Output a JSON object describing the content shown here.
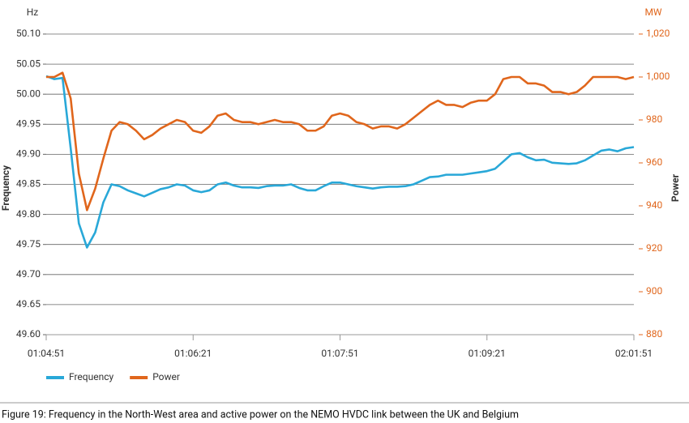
{
  "chart_data": {
    "type": "line",
    "y_unit": "Hz",
    "y2_unit": "MW",
    "ylabel": "Frequency",
    "y2label": "Power",
    "caption": "Figure 19: Frequency in the North-West area and active power on the NEMO HVDC link between the UK and Belgium",
    "categories": [
      "01:04:51",
      null,
      null,
      null,
      null,
      null,
      null,
      null,
      null,
      null,
      null,
      null,
      null,
      null,
      null,
      null,
      null,
      null,
      "01:06:21",
      null,
      null,
      null,
      null,
      null,
      null,
      null,
      null,
      null,
      null,
      null,
      null,
      null,
      null,
      null,
      null,
      null,
      "01:07:51",
      null,
      null,
      null,
      null,
      null,
      null,
      null,
      null,
      null,
      null,
      null,
      null,
      null,
      null,
      null,
      null,
      null,
      "01:09:21",
      null,
      null,
      null,
      null,
      null,
      null,
      null,
      null,
      null,
      null,
      null,
      null,
      null,
      null,
      null,
      null,
      null,
      "02:01:51"
    ],
    "series": [
      {
        "name": "Frequency",
        "color": "#29a8d8",
        "values": [
          50.03,
          50.025,
          50.027,
          49.91,
          49.785,
          49.745,
          49.77,
          49.82,
          49.85,
          49.847,
          49.84,
          49.835,
          49.83,
          49.836,
          49.842,
          49.845,
          49.85,
          49.848,
          49.84,
          49.837,
          49.84,
          49.85,
          49.853,
          49.848,
          49.845,
          49.845,
          49.844,
          49.847,
          49.848,
          49.848,
          49.85,
          49.844,
          49.84,
          49.84,
          49.847,
          49.853,
          49.853,
          49.85,
          49.847,
          49.845,
          49.843,
          49.845,
          49.846,
          49.846,
          49.847,
          49.85,
          49.856,
          49.862,
          49.863,
          49.866,
          49.866,
          49.866,
          49.868,
          49.87,
          49.872,
          49.876,
          49.888,
          49.9,
          49.902,
          49.895,
          49.89,
          49.891,
          49.886,
          49.885,
          49.884,
          49.885,
          49.89,
          49.898,
          49.906,
          49.908,
          49.905,
          49.91,
          49.912
        ]
      },
      {
        "name": "Power",
        "color": "#e0661c",
        "axis": "y2",
        "values": [
          1000,
          1000,
          1002,
          990,
          955,
          938,
          948,
          962,
          975,
          979,
          978,
          975,
          971,
          973,
          976,
          978,
          980,
          979,
          975,
          974,
          977,
          982,
          983,
          980,
          979,
          979,
          978,
          979,
          980,
          979,
          979,
          978,
          975,
          975,
          977,
          982,
          983,
          982,
          979,
          978,
          976,
          977,
          977,
          976,
          978,
          981,
          984,
          987,
          989,
          987,
          987,
          986,
          988,
          989,
          989,
          992,
          999,
          1000,
          1000,
          997,
          997,
          996,
          993,
          993,
          992,
          993,
          996,
          1000,
          1000,
          1000,
          1000,
          999,
          1000
        ]
      }
    ],
    "ylim": [
      49.6,
      50.1
    ],
    "yticks": [
      {
        "value": 49.6,
        "label": "49.60"
      },
      49.65,
      {
        "value": 49.7,
        "label": "49.70"
      },
      49.75,
      {
        "value": 49.8,
        "label": "49.80"
      },
      49.85,
      {
        "value": 49.9,
        "label": "49.90"
      },
      49.95,
      {
        "value": 50,
        "label": "50.00"
      },
      50.05,
      {
        "value": 50.1,
        "label": "50.10"
      }
    ],
    "y2lim": [
      880,
      1020
    ],
    "y2ticks": [
      880,
      900,
      920,
      940,
      960,
      980,
      {
        "value": 1000,
        "label": "1,000"
      },
      {
        "value": 1020,
        "label": "1,020"
      }
    ],
    "grid": true
  }
}
